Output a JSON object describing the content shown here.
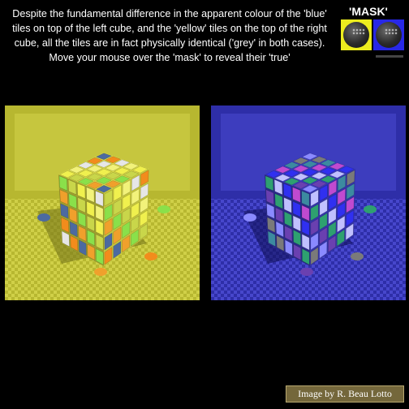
{
  "instructions": "Despite the fundamental difference in the apparent colour of the 'blue' tiles on top of the left cube, and the 'yellow' tiles on the top of the right cube, all the tiles are in fact physically identical ('grey' in both cases). Move your mouse over the 'mask' to reveal their 'true'",
  "mask": {
    "label": "'MASK'",
    "icon": "mask-icon",
    "swatches": [
      "#ecec1e",
      "#2828e6"
    ]
  },
  "panels": [
    {
      "name": "yellow-lit-cube",
      "colors": {
        "bg": "#b7b730",
        "light": "#e3e35a",
        "shadow": "#77771a",
        "cube_top": "#d6d648",
        "cube_left": "#9f9f2e",
        "cube_right": "#c4c43e",
        "tiles": [
          "#f0f04e",
          "#f28c1c",
          "#8ae04a",
          "#f2f27a",
          "#4c6aa0",
          "#c9d64a",
          "#e6e6e6",
          "#f0a02c"
        ]
      }
    },
    {
      "name": "blue-lit-cube",
      "colors": {
        "bg": "#2e2ea8",
        "light": "#5a5ae8",
        "shadow": "#12125c",
        "cube_top": "#3c3cc0",
        "cube_left": "#2a2a88",
        "cube_right": "#3434a8",
        "tiles": [
          "#3030f0",
          "#7a7a7a",
          "#2ea070",
          "#c04ad0",
          "#8a8aff",
          "#c0c0ff",
          "#3c8aa0",
          "#6a40b0"
        ]
      }
    }
  ],
  "credit": "Image by R. Beau Lotto"
}
